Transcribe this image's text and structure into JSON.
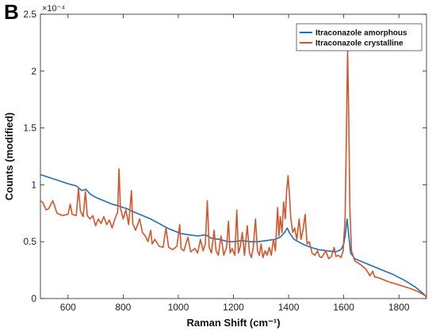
{
  "panel_label": "B",
  "chart_data": {
    "type": "line",
    "title": "",
    "xlabel": "Raman Shift (cm⁻¹)",
    "ylabel": "Counts (modified)",
    "y_multiplier": "×10⁻⁴",
    "xlim": [
      500,
      1900
    ],
    "ylim": [
      0,
      2.5
    ],
    "x_ticks": [
      600,
      800,
      1000,
      1200,
      1400,
      1600,
      1800
    ],
    "y_ticks": [
      0,
      0.5,
      1,
      1.5,
      2,
      2.5
    ],
    "grid": false,
    "legend_position": "top-right",
    "series": [
      {
        "name": "Itraconazole amorphous",
        "color": "#1f6fb8",
        "points": [
          [
            500,
            1.09
          ],
          [
            550,
            1.05
          ],
          [
            600,
            1.01
          ],
          [
            630,
            0.99
          ],
          [
            640,
            0.97
          ],
          [
            650,
            0.95
          ],
          [
            665,
            0.96
          ],
          [
            680,
            0.92
          ],
          [
            700,
            0.89
          ],
          [
            730,
            0.86
          ],
          [
            760,
            0.83
          ],
          [
            790,
            0.81
          ],
          [
            800,
            0.8
          ],
          [
            815,
            0.79
          ],
          [
            830,
            0.77
          ],
          [
            860,
            0.74
          ],
          [
            900,
            0.7
          ],
          [
            930,
            0.66
          ],
          [
            960,
            0.62
          ],
          [
            990,
            0.59
          ],
          [
            1010,
            0.57
          ],
          [
            1040,
            0.56
          ],
          [
            1070,
            0.55
          ],
          [
            1100,
            0.56
          ],
          [
            1120,
            0.53
          ],
          [
            1150,
            0.52
          ],
          [
            1180,
            0.5
          ],
          [
            1200,
            0.5
          ],
          [
            1230,
            0.51
          ],
          [
            1260,
            0.5
          ],
          [
            1290,
            0.5
          ],
          [
            1320,
            0.51
          ],
          [
            1350,
            0.52
          ],
          [
            1370,
            0.54
          ],
          [
            1385,
            0.58
          ],
          [
            1395,
            0.62
          ],
          [
            1405,
            0.57
          ],
          [
            1420,
            0.52
          ],
          [
            1450,
            0.48
          ],
          [
            1480,
            0.45
          ],
          [
            1510,
            0.43
          ],
          [
            1540,
            0.42
          ],
          [
            1570,
            0.41
          ],
          [
            1590,
            0.43
          ],
          [
            1600,
            0.48
          ],
          [
            1605,
            0.55
          ],
          [
            1612,
            0.7
          ],
          [
            1618,
            0.56
          ],
          [
            1625,
            0.4
          ],
          [
            1640,
            0.35
          ],
          [
            1660,
            0.33
          ],
          [
            1700,
            0.29
          ],
          [
            1740,
            0.25
          ],
          [
            1780,
            0.21
          ],
          [
            1820,
            0.16
          ],
          [
            1860,
            0.1
          ],
          [
            1890,
            0.04
          ],
          [
            1900,
            0.01
          ]
        ]
      },
      {
        "name": "Itraconazole crystalline",
        "color": "#d4552b",
        "points": [
          [
            500,
            0.86
          ],
          [
            510,
            0.84
          ],
          [
            520,
            0.78
          ],
          [
            530,
            0.79
          ],
          [
            545,
            0.86
          ],
          [
            560,
            0.75
          ],
          [
            580,
            0.73
          ],
          [
            600,
            0.74
          ],
          [
            608,
            0.83
          ],
          [
            615,
            0.74
          ],
          [
            630,
            0.73
          ],
          [
            638,
            0.97
          ],
          [
            645,
            0.77
          ],
          [
            655,
            0.72
          ],
          [
            663,
            0.94
          ],
          [
            670,
            0.73
          ],
          [
            680,
            0.7
          ],
          [
            690,
            0.73
          ],
          [
            700,
            0.64
          ],
          [
            710,
            0.7
          ],
          [
            720,
            0.66
          ],
          [
            730,
            0.72
          ],
          [
            740,
            0.65
          ],
          [
            750,
            0.69
          ],
          [
            760,
            0.62
          ],
          [
            770,
            0.7
          ],
          [
            780,
            0.76
          ],
          [
            785,
            1.14
          ],
          [
            790,
            0.8
          ],
          [
            800,
            0.7
          ],
          [
            810,
            0.78
          ],
          [
            820,
            0.65
          ],
          [
            830,
            0.95
          ],
          [
            835,
            0.66
          ],
          [
            845,
            0.6
          ],
          [
            860,
            0.7
          ],
          [
            870,
            0.58
          ],
          [
            880,
            0.55
          ],
          [
            890,
            0.5
          ],
          [
            900,
            0.6
          ],
          [
            905,
            0.48
          ],
          [
            915,
            0.52
          ],
          [
            930,
            0.46
          ],
          [
            945,
            0.45
          ],
          [
            955,
            0.62
          ],
          [
            965,
            0.45
          ],
          [
            980,
            0.43
          ],
          [
            995,
            0.46
          ],
          [
            1005,
            0.65
          ],
          [
            1010,
            0.44
          ],
          [
            1020,
            0.42
          ],
          [
            1035,
            0.54
          ],
          [
            1045,
            0.41
          ],
          [
            1060,
            0.44
          ],
          [
            1070,
            0.4
          ],
          [
            1080,
            0.52
          ],
          [
            1090,
            0.42
          ],
          [
            1098,
            0.48
          ],
          [
            1105,
            0.86
          ],
          [
            1112,
            0.45
          ],
          [
            1120,
            0.4
          ],
          [
            1130,
            0.6
          ],
          [
            1137,
            0.42
          ],
          [
            1145,
            0.38
          ],
          [
            1155,
            0.55
          ],
          [
            1165,
            0.38
          ],
          [
            1175,
            0.45
          ],
          [
            1182,
            0.68
          ],
          [
            1188,
            0.4
          ],
          [
            1195,
            0.44
          ],
          [
            1205,
            0.38
          ],
          [
            1212,
            0.78
          ],
          [
            1218,
            0.4
          ],
          [
            1225,
            0.46
          ],
          [
            1232,
            0.58
          ],
          [
            1240,
            0.38
          ],
          [
            1250,
            0.64
          ],
          [
            1258,
            0.4
          ],
          [
            1265,
            0.36
          ],
          [
            1272,
            0.45
          ],
          [
            1280,
            0.7
          ],
          [
            1287,
            0.42
          ],
          [
            1294,
            0.38
          ],
          [
            1300,
            0.48
          ],
          [
            1307,
            0.36
          ],
          [
            1315,
            0.42
          ],
          [
            1322,
            0.38
          ],
          [
            1330,
            0.45
          ],
          [
            1337,
            0.38
          ],
          [
            1345,
            0.52
          ],
          [
            1352,
            0.42
          ],
          [
            1360,
            0.8
          ],
          [
            1365,
            0.55
          ],
          [
            1370,
            0.72
          ],
          [
            1376,
            0.58
          ],
          [
            1382,
            0.85
          ],
          [
            1388,
            0.7
          ],
          [
            1393,
            0.95
          ],
          [
            1398,
            1.08
          ],
          [
            1403,
            0.92
          ],
          [
            1408,
            0.7
          ],
          [
            1415,
            0.58
          ],
          [
            1422,
            0.62
          ],
          [
            1430,
            0.52
          ],
          [
            1438,
            0.7
          ],
          [
            1445,
            0.52
          ],
          [
            1452,
            0.6
          ],
          [
            1460,
            0.74
          ],
          [
            1467,
            0.48
          ],
          [
            1475,
            0.5
          ],
          [
            1485,
            0.4
          ],
          [
            1495,
            0.38
          ],
          [
            1505,
            0.42
          ],
          [
            1512,
            0.37
          ],
          [
            1520,
            0.36
          ],
          [
            1535,
            0.42
          ],
          [
            1545,
            0.35
          ],
          [
            1555,
            0.37
          ],
          [
            1565,
            0.45
          ],
          [
            1572,
            0.37
          ],
          [
            1580,
            0.38
          ],
          [
            1590,
            0.36
          ],
          [
            1598,
            0.42
          ],
          [
            1605,
            0.72
          ],
          [
            1610,
            1.5
          ],
          [
            1614,
            2.19
          ],
          [
            1618,
            1.6
          ],
          [
            1622,
            0.8
          ],
          [
            1628,
            0.42
          ],
          [
            1640,
            0.33
          ],
          [
            1660,
            0.3
          ],
          [
            1680,
            0.26
          ],
          [
            1695,
            0.2
          ],
          [
            1705,
            0.24
          ],
          [
            1712,
            0.19
          ],
          [
            1730,
            0.18
          ],
          [
            1760,
            0.15
          ],
          [
            1800,
            0.12
          ],
          [
            1840,
            0.09
          ],
          [
            1870,
            0.06
          ],
          [
            1900,
            0.02
          ]
        ]
      }
    ]
  }
}
